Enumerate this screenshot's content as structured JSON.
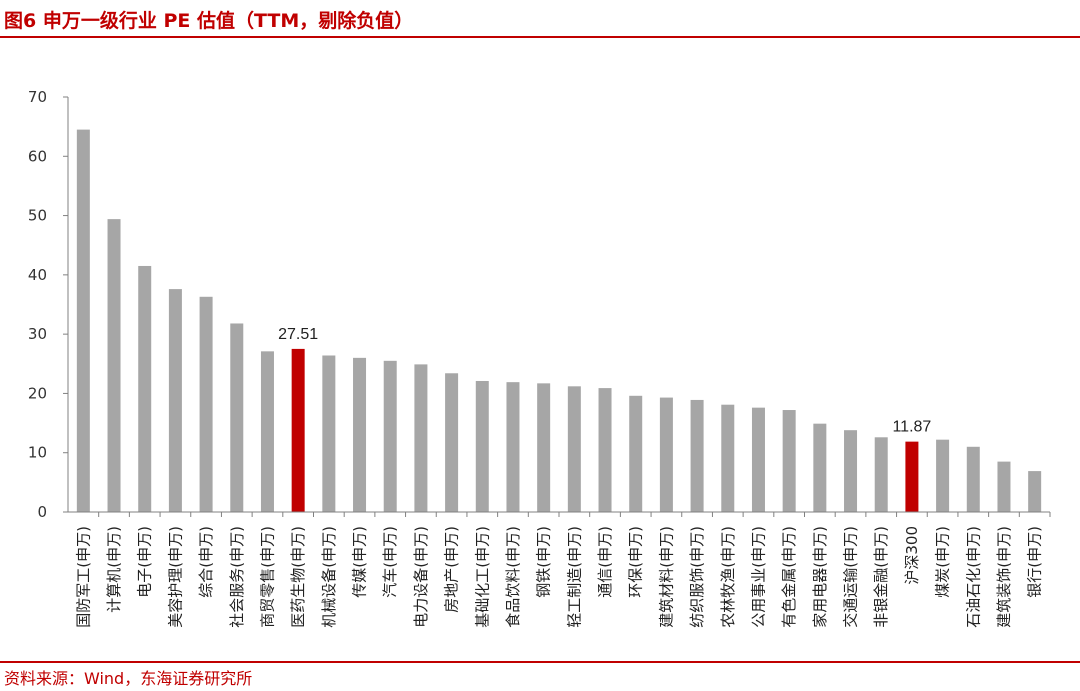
{
  "header": {
    "title": "图6  申万一级行业 PE 估值（TTM，剔除负值）"
  },
  "footer": {
    "source": "资料来源：Wind，东海证券研究所"
  },
  "colors": {
    "bar": "#a6a6a6",
    "highlight": "#c00000",
    "title": "#c00000",
    "axis": "#808080"
  },
  "chart_data": {
    "type": "bar",
    "title": "申万一级行业 PE 估值（TTM，剔除负值）",
    "xlabel": "",
    "ylabel": "",
    "ylim": [
      0,
      70
    ],
    "yticks": [
      0,
      10,
      20,
      30,
      40,
      50,
      60,
      70
    ],
    "grid": false,
    "legend": "none",
    "categories": [
      "国防军工(申万)",
      "计算机(申万)",
      "电子(申万)",
      "美容护理(申万)",
      "综合(申万)",
      "社会服务(申万)",
      "商贸零售(申万)",
      "医药生物(申万)",
      "机械设备(申万)",
      "传媒(申万)",
      "汽车(申万)",
      "电力设备(申万)",
      "房地产(申万)",
      "基础化工(申万)",
      "食品饮料(申万)",
      "钢铁(申万)",
      "轻工制造(申万)",
      "通信(申万)",
      "环保(申万)",
      "建筑材料(申万)",
      "纺织服饰(申万)",
      "农林牧渔(申万)",
      "公用事业(申万)",
      "有色金属(申万)",
      "家用电器(申万)",
      "交通运输(申万)",
      "非银金融(申万)",
      "沪深300",
      "煤炭(申万)",
      "石油石化(申万)",
      "建筑装饰(申万)",
      "银行(申万)"
    ],
    "values": [
      64.5,
      49.4,
      41.5,
      37.6,
      36.3,
      31.8,
      27.1,
      27.51,
      26.4,
      26.0,
      25.5,
      24.9,
      23.4,
      22.1,
      21.9,
      21.7,
      21.2,
      20.9,
      19.6,
      19.3,
      18.9,
      18.1,
      17.6,
      17.2,
      14.9,
      13.8,
      12.6,
      11.87,
      12.2,
      11.0,
      8.5,
      6.9
    ],
    "highlight_indices": [
      7,
      27
    ],
    "data_labels": [
      {
        "index": 7,
        "text": "27.51"
      },
      {
        "index": 27,
        "text": "11.87"
      }
    ]
  }
}
